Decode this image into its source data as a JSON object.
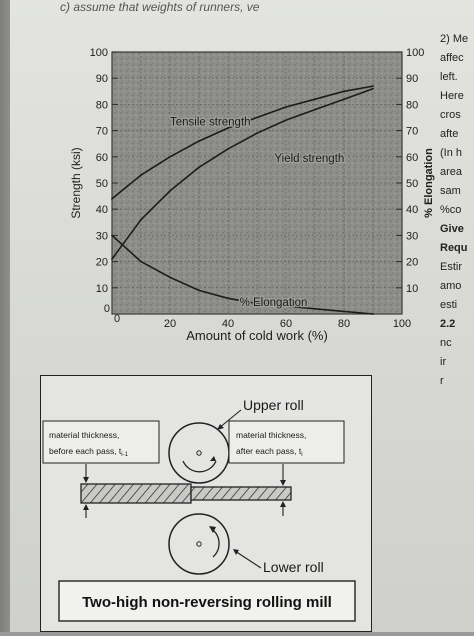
{
  "top_text": "c) assume that weights of runners, ve",
  "right_column": {
    "lines": [
      "2) Me",
      "affec",
      "left.",
      "Here",
      "cros",
      "afte",
      "(In h",
      "area",
      "sam",
      "%co",
      "Give",
      "Requ",
      "Estir",
      "amo",
      "esti",
      "2.2",
      "nc",
      "ir",
      "r"
    ]
  },
  "chart_data": {
    "type": "line",
    "xlabel": "Amount of cold work (%)",
    "ylabel": "Strength (ksi)",
    "y2label": "% Elongation",
    "xlim": [
      0,
      100
    ],
    "ylim": [
      0,
      100
    ],
    "x_ticks": [
      "20",
      "40",
      "60",
      "80",
      "100"
    ],
    "x_origin_label": "0",
    "y_ticks": [
      "10",
      "20",
      "30",
      "40",
      "50",
      "60",
      "70",
      "80",
      "90",
      "100"
    ],
    "y_origin_label": "0",
    "y2_ticks": [
      "10",
      "20",
      "30",
      "40",
      "50",
      "60",
      "70",
      "80",
      "90",
      "100"
    ],
    "grid": true,
    "series": [
      {
        "name": "Tensile strength",
        "x": [
          0,
          10,
          20,
          30,
          40,
          50,
          60,
          70,
          80,
          90
        ],
        "values": [
          44,
          53,
          60,
          66,
          71,
          75,
          79,
          82,
          85,
          87
        ]
      },
      {
        "name": "Yield strength",
        "x": [
          0,
          10,
          20,
          30,
          40,
          50,
          60,
          70,
          80,
          90
        ],
        "values": [
          21,
          36,
          47,
          56,
          63,
          69,
          74,
          78,
          82,
          86
        ]
      },
      {
        "name": "% Elongation",
        "x": [
          0,
          10,
          20,
          30,
          40,
          50,
          60,
          70,
          80,
          90
        ],
        "values": [
          30,
          20,
          14,
          9,
          6,
          4,
          3,
          2,
          1,
          0
        ]
      }
    ]
  },
  "mill": {
    "upper_roll": "Upper roll",
    "lower_roll": "Lower roll",
    "before_line1": "material thickness,",
    "before_line2": "before each pass, t",
    "before_sub": "i-1",
    "after_line1": "material thickness,",
    "after_line2": "after each pass, t",
    "after_sub": "i",
    "caption": "Two-high non-reversing rolling mill"
  }
}
